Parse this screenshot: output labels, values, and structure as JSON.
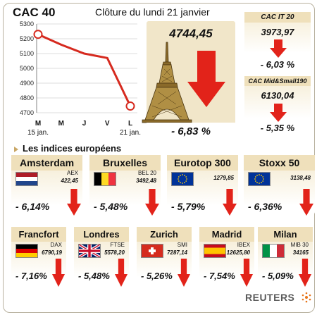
{
  "header": {
    "title": "CAC 40",
    "subtitle": "Clôture du lundi 21 janvier"
  },
  "chart_data": {
    "type": "line",
    "title": "CAC 40",
    "categories": [
      "M",
      "M",
      "J",
      "V",
      "L"
    ],
    "x_sublabels": [
      "15 jan.",
      "",
      "",
      "",
      "21 jan."
    ],
    "values": [
      5230,
      5160,
      5100,
      5070,
      4745
    ],
    "ylim": [
      4700,
      5300
    ],
    "yticks": [
      4700,
      4800,
      4900,
      5000,
      5100,
      5200,
      5300
    ],
    "grid": true,
    "line_color": "#d62a1f"
  },
  "cac40": {
    "value": "4744,45",
    "change": "- 6,83 %"
  },
  "side": [
    {
      "name": "CAC IT 20",
      "value": "3973,97",
      "change": "- 6,03 %"
    },
    {
      "name": "CAC Mid&Small190",
      "value": "6130,04",
      "change": "- 5,35 %"
    }
  ],
  "section_title": "Les indices européens",
  "row1": [
    {
      "name": "Amsterdam",
      "index": "AEX",
      "value": "422,45",
      "change": "- 6,14%",
      "flag": "netherlands"
    },
    {
      "name": "Bruxelles",
      "index": "BEL 20",
      "value": "3492,48",
      "change": "- 5,48%",
      "flag": "belgium"
    },
    {
      "name": "Eurotop 300",
      "index": "",
      "value": "1279,85",
      "change": "- 5,79%",
      "flag": "eu"
    },
    {
      "name": "Stoxx 50",
      "index": "",
      "value": "3138,48",
      "change": "- 6,36%",
      "flag": "eu"
    }
  ],
  "row2": [
    {
      "name": "Francfort",
      "index": "DAX",
      "value": "6790,19",
      "change": "- 7,16%",
      "flag": "germany"
    },
    {
      "name": "Londres",
      "index": "FTSE",
      "value": "5578,20",
      "change": "- 5,48%",
      "flag": "uk"
    },
    {
      "name": "Zurich",
      "index": "SMI",
      "value": "7287,14",
      "change": "- 5,26%",
      "flag": "switzerland"
    },
    {
      "name": "Madrid",
      "index": "IBEX",
      "value": "12625,80",
      "change": "- 7,54%",
      "flag": "spain"
    },
    {
      "name": "Milan",
      "index": "MIB 30",
      "value": "34165",
      "change": "- 5,09%",
      "flag": "italy"
    }
  ],
  "credit": "REUTERS",
  "colors": {
    "accent": "#e2231a",
    "panel": "#f1e6c9",
    "header": "#efe0bb"
  }
}
